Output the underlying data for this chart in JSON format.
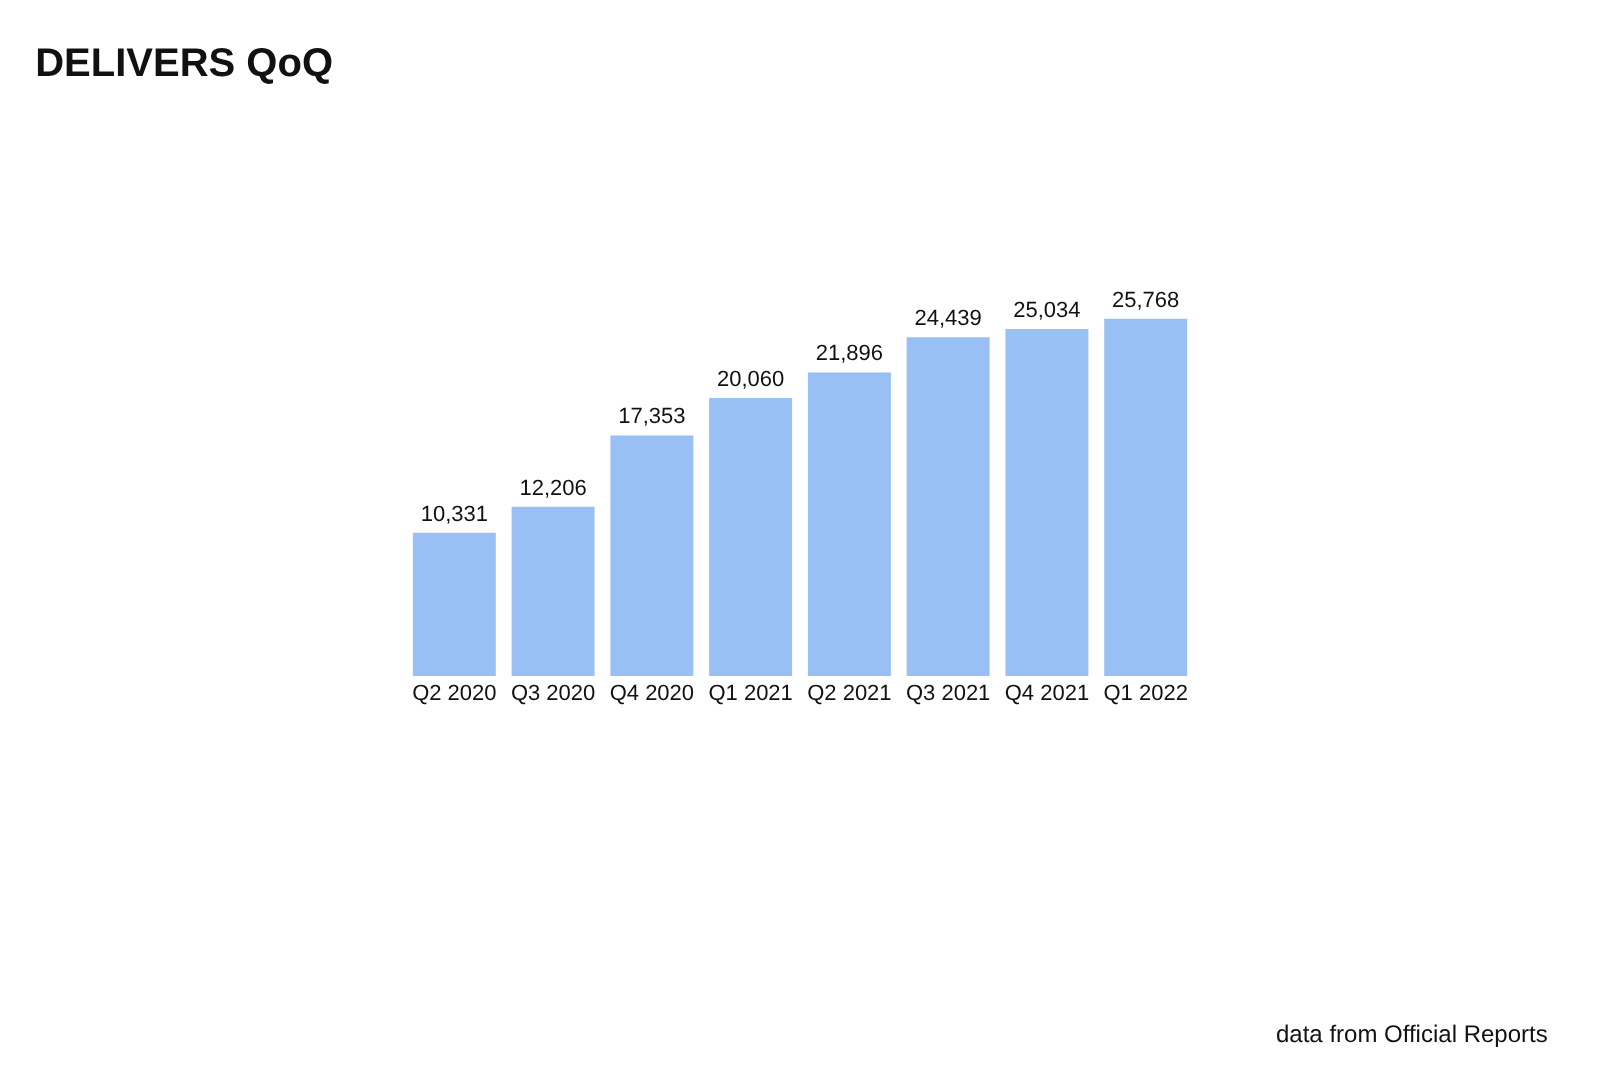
{
  "chart_data": {
    "type": "bar",
    "title": "DELIVERS QoQ",
    "categories": [
      "Q2 2020",
      "Q3 2020",
      "Q4 2020",
      "Q1 2021",
      "Q2 2021",
      "Q3 2021",
      "Q4 2021",
      "Q1 2022"
    ],
    "values": [
      10331,
      12206,
      17353,
      20060,
      21896,
      24439,
      25034,
      25768
    ],
    "value_labels": [
      "10,331",
      "12,206",
      "17,353",
      "20,060",
      "21,896",
      "24,439",
      "25,034",
      "25,768"
    ],
    "color": "#99c0f4",
    "grid": false,
    "legend": false,
    "annotations": [
      "data from Official Reports"
    ]
  }
}
